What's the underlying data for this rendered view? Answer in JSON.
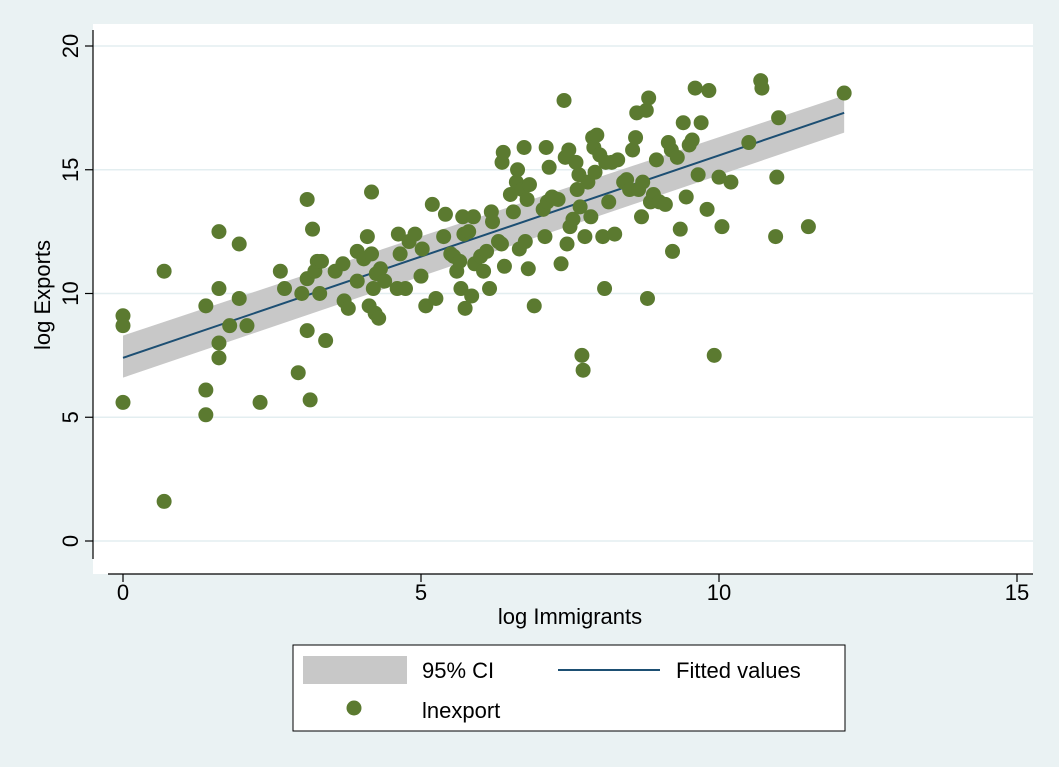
{
  "chart_data": {
    "type": "scatter",
    "title": "",
    "xlabel": "log Immigrants",
    "ylabel": "log Exports",
    "xlim": [
      0,
      15
    ],
    "ylim": [
      0,
      20
    ],
    "xticks": [
      "0",
      "5",
      "10",
      "15"
    ],
    "yticks": [
      "0",
      "5",
      "10",
      "15",
      "20"
    ],
    "grid": "horizontal",
    "legend_placement": "bottom",
    "colors": {
      "background": "#eaf2f3",
      "plot_background": "#ffffff",
      "grid": "#e3eef0",
      "marker": "#5b7a30",
      "fit_line": "#1d4f73",
      "ci_band": "#c8c8c8"
    },
    "series": [
      {
        "name": "95% CI",
        "kind": "band",
        "x": [
          0,
          12.1
        ],
        "lower": [
          6.6,
          16.5
        ],
        "upper": [
          8.3,
          18.0
        ]
      },
      {
        "name": "Fitted values",
        "kind": "line",
        "x": [
          0,
          12.1
        ],
        "y": [
          7.4,
          17.3
        ]
      },
      {
        "name": "lnexport",
        "kind": "scatter",
        "points": [
          [
            0,
            9.1
          ],
          [
            0,
            8.7
          ],
          [
            0,
            5.6
          ],
          [
            0.69,
            10.9
          ],
          [
            0.69,
            1.6
          ],
          [
            1.39,
            9.5
          ],
          [
            1.39,
            6.1
          ],
          [
            1.39,
            5.1
          ],
          [
            1.61,
            12.5
          ],
          [
            1.61,
            10.2
          ],
          [
            1.61,
            8.0
          ],
          [
            1.61,
            7.4
          ],
          [
            1.79,
            8.7
          ],
          [
            1.95,
            12.0
          ],
          [
            1.95,
            9.8
          ],
          [
            2.08,
            8.7
          ],
          [
            2.3,
            5.6
          ],
          [
            2.64,
            10.9
          ],
          [
            2.71,
            10.2
          ],
          [
            2.94,
            6.8
          ],
          [
            3.0,
            10.0
          ],
          [
            3.09,
            13.8
          ],
          [
            3.09,
            10.6
          ],
          [
            3.09,
            8.5
          ],
          [
            3.14,
            5.7
          ],
          [
            3.18,
            12.6
          ],
          [
            3.22,
            10.9
          ],
          [
            3.26,
            11.3
          ],
          [
            3.3,
            10.0
          ],
          [
            3.33,
            11.3
          ],
          [
            3.4,
            8.1
          ],
          [
            3.56,
            10.9
          ],
          [
            3.69,
            11.2
          ],
          [
            3.71,
            9.7
          ],
          [
            3.78,
            9.4
          ],
          [
            3.93,
            11.7
          ],
          [
            3.93,
            10.5
          ],
          [
            4.04,
            11.4
          ],
          [
            4.1,
            12.3
          ],
          [
            4.13,
            9.5
          ],
          [
            4.17,
            14.1
          ],
          [
            4.17,
            11.6
          ],
          [
            4.2,
            10.2
          ],
          [
            4.23,
            9.2
          ],
          [
            4.25,
            10.8
          ],
          [
            4.29,
            9.0
          ],
          [
            4.32,
            11.0
          ],
          [
            4.39,
            10.5
          ],
          [
            4.6,
            10.2
          ],
          [
            4.62,
            12.4
          ],
          [
            4.65,
            11.6
          ],
          [
            4.74,
            10.2
          ],
          [
            4.8,
            12.1
          ],
          [
            4.9,
            12.4
          ],
          [
            5.0,
            10.7
          ],
          [
            5.02,
            11.8
          ],
          [
            5.08,
            9.5
          ],
          [
            5.19,
            13.6
          ],
          [
            5.25,
            9.8
          ],
          [
            5.38,
            12.3
          ],
          [
            5.41,
            13.2
          ],
          [
            5.5,
            11.6
          ],
          [
            5.55,
            11.5
          ],
          [
            5.6,
            10.9
          ],
          [
            5.65,
            11.3
          ],
          [
            5.67,
            10.2
          ],
          [
            5.7,
            13.1
          ],
          [
            5.72,
            12.4
          ],
          [
            5.74,
            9.4
          ],
          [
            5.8,
            12.5
          ],
          [
            5.85,
            9.9
          ],
          [
            5.88,
            13.1
          ],
          [
            5.9,
            11.2
          ],
          [
            6.0,
            11.5
          ],
          [
            6.05,
            10.9
          ],
          [
            6.1,
            11.7
          ],
          [
            6.15,
            10.2
          ],
          [
            6.18,
            13.3
          ],
          [
            6.2,
            12.9
          ],
          [
            6.3,
            12.1
          ],
          [
            6.35,
            12.0
          ],
          [
            6.36,
            15.3
          ],
          [
            6.38,
            15.7
          ],
          [
            6.4,
            11.1
          ],
          [
            6.5,
            14.0
          ],
          [
            6.55,
            13.3
          ],
          [
            6.6,
            14.5
          ],
          [
            6.62,
            15.0
          ],
          [
            6.65,
            11.8
          ],
          [
            6.7,
            14.2
          ],
          [
            6.73,
            15.9
          ],
          [
            6.75,
            12.1
          ],
          [
            6.78,
            13.8
          ],
          [
            6.8,
            11.0
          ],
          [
            6.82,
            14.4
          ],
          [
            6.9,
            9.5
          ],
          [
            7.05,
            13.4
          ],
          [
            7.08,
            12.3
          ],
          [
            7.1,
            15.9
          ],
          [
            7.12,
            13.7
          ],
          [
            7.15,
            15.1
          ],
          [
            7.2,
            13.9
          ],
          [
            7.3,
            13.8
          ],
          [
            7.35,
            11.2
          ],
          [
            7.4,
            17.8
          ],
          [
            7.42,
            15.5
          ],
          [
            7.45,
            12.0
          ],
          [
            7.48,
            15.8
          ],
          [
            7.5,
            12.7
          ],
          [
            7.55,
            13.0
          ],
          [
            7.6,
            15.3
          ],
          [
            7.62,
            14.2
          ],
          [
            7.65,
            14.8
          ],
          [
            7.67,
            13.5
          ],
          [
            7.7,
            7.5
          ],
          [
            7.72,
            6.9
          ],
          [
            7.75,
            12.3
          ],
          [
            7.8,
            14.5
          ],
          [
            7.85,
            13.1
          ],
          [
            7.88,
            16.3
          ],
          [
            7.9,
            15.9
          ],
          [
            7.92,
            14.9
          ],
          [
            7.95,
            16.4
          ],
          [
            8.0,
            15.6
          ],
          [
            8.05,
            12.3
          ],
          [
            8.08,
            10.2
          ],
          [
            8.1,
            15.3
          ],
          [
            8.15,
            13.7
          ],
          [
            8.2,
            15.3
          ],
          [
            8.25,
            12.4
          ],
          [
            8.3,
            15.4
          ],
          [
            8.4,
            14.5
          ],
          [
            8.45,
            14.6
          ],
          [
            8.5,
            14.2
          ],
          [
            8.55,
            15.8
          ],
          [
            8.6,
            16.3
          ],
          [
            8.62,
            17.3
          ],
          [
            8.65,
            14.2
          ],
          [
            8.7,
            13.1
          ],
          [
            8.72,
            14.5
          ],
          [
            8.78,
            17.4
          ],
          [
            8.8,
            9.8
          ],
          [
            8.82,
            17.9
          ],
          [
            8.85,
            13.7
          ],
          [
            8.9,
            14.0
          ],
          [
            8.95,
            15.4
          ],
          [
            9.0,
            13.7
          ],
          [
            9.1,
            13.6
          ],
          [
            9.15,
            16.1
          ],
          [
            9.2,
            15.8
          ],
          [
            9.22,
            11.7
          ],
          [
            9.3,
            15.5
          ],
          [
            9.35,
            12.6
          ],
          [
            9.4,
            16.9
          ],
          [
            9.45,
            13.9
          ],
          [
            9.5,
            16.0
          ],
          [
            9.55,
            16.2
          ],
          [
            9.6,
            18.3
          ],
          [
            9.65,
            14.8
          ],
          [
            9.7,
            16.9
          ],
          [
            9.8,
            13.4
          ],
          [
            9.83,
            18.2
          ],
          [
            9.92,
            7.5
          ],
          [
            10.0,
            14.7
          ],
          [
            10.05,
            12.7
          ],
          [
            10.2,
            14.5
          ],
          [
            10.5,
            16.1
          ],
          [
            10.7,
            18.6
          ],
          [
            10.72,
            18.3
          ],
          [
            10.95,
            12.3
          ],
          [
            10.97,
            14.7
          ],
          [
            11.0,
            17.1
          ],
          [
            11.5,
            12.7
          ],
          [
            12.1,
            18.1
          ]
        ]
      }
    ]
  }
}
